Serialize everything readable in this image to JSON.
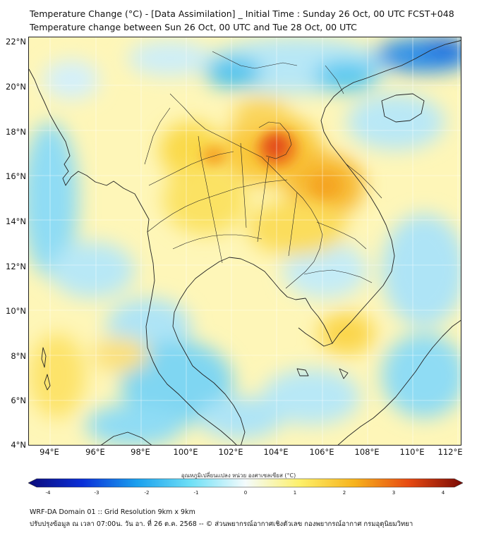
{
  "header": {
    "title_line1": "Temperature Change (°C) - [Data Assimilation] _ Initial Time : Sunday 26 Oct, 00 UTC FCST+048",
    "title_line2": "Temperature change between Sun 26 Oct, 00 UTC and Tue 28 Oct, 00 UTC"
  },
  "map": {
    "lat_labels": [
      "22°N",
      "20°N",
      "18°N",
      "16°N",
      "14°N",
      "12°N",
      "10°N",
      "8°N",
      "6°N",
      "4°N"
    ],
    "lon_labels": [
      "94°E",
      "96°E",
      "98°E",
      "100°E",
      "102°E",
      "104°E",
      "106°E",
      "108°E",
      "110°E",
      "112°E"
    ],
    "colors": {
      "warm_max": "#d62a10",
      "warm": "#f5a623",
      "mild_warm": "#fde95a",
      "neutral": "#fffbe0",
      "mild_cool": "#c4ecf7",
      "cool": "#4fd0f2",
      "cold": "#1767e0",
      "border_line": "#222222"
    }
  },
  "colorbar": {
    "title": "อุณหภูมิเปลี่ยนแปลง หน่วย องศาเซลเซียส (°C)",
    "ticks": [
      "-4",
      "-3",
      "-2",
      "-1",
      "0",
      "1",
      "2",
      "3",
      "4"
    ],
    "stops": [
      "#0b0a7a",
      "#0a2fd8",
      "#1aa0ee",
      "#6fe0f6",
      "#f4fbfc",
      "#fdf06a",
      "#f7b31c",
      "#e74a12",
      "#7a0a05"
    ]
  },
  "footer": {
    "line1": "WRF-DA Domain 01 :: Grid Resolution 9km x 9km",
    "line2": "ปรับปรุงข้อมูล ณ เวลา 07:00น. วัน อา. ที่ 26 ต.ค. 2568 -- © ส่วนพยากรณ์อากาศเชิงตัวเลข กองพยากรณ์อากาศ กรมอุตุนิยมวิทยา"
  }
}
